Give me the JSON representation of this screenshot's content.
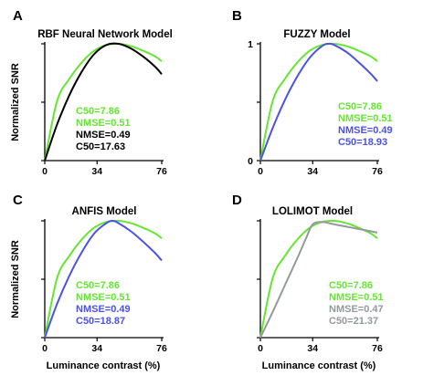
{
  "chart_data": [
    {
      "type": "line",
      "panel_letter": "A",
      "title": "RBF Neural Network Model",
      "xlabel": "",
      "ylabel": "Normalized SNR",
      "xlim": [
        0,
        76
      ],
      "ylim": [
        0,
        1
      ],
      "x_ticks": [
        "0",
        "34",
        "76"
      ],
      "y_ticks": [],
      "grid": false,
      "series": [
        {
          "color": "#66e533",
          "x": [
            0,
            8,
            16,
            24,
            32,
            40,
            48,
            56,
            64,
            72,
            76
          ],
          "y": [
            0,
            0.51,
            0.7,
            0.84,
            0.94,
            0.99,
            1.0,
            0.98,
            0.94,
            0.89,
            0.85
          ]
        },
        {
          "color": "#000000",
          "x": [
            0,
            8,
            16,
            24,
            32,
            40,
            48,
            56,
            64,
            72,
            76
          ],
          "y": [
            0,
            0.31,
            0.56,
            0.76,
            0.91,
            0.99,
            1.0,
            0.96,
            0.89,
            0.8,
            0.74
          ]
        }
      ],
      "annotations": [
        {
          "text": "C50=7.86",
          "color": "#66e533"
        },
        {
          "text": "NMSE=0.51",
          "color": "#66e533"
        },
        {
          "text": "NMSE=0.49",
          "color": "#000000"
        },
        {
          "text": "C50=17.63",
          "color": "#000000"
        }
      ]
    },
    {
      "type": "line",
      "panel_letter": "B",
      "title": "FUZZY Model",
      "xlabel": "",
      "ylabel": "",
      "xlim": [
        0,
        76
      ],
      "ylim": [
        0,
        1
      ],
      "x_ticks": [
        "0",
        "34",
        "76"
      ],
      "y_ticks": [
        "0",
        "1"
      ],
      "grid": false,
      "series": [
        {
          "color": "#66e533",
          "x": [
            0,
            8,
            16,
            24,
            32,
            40,
            48,
            56,
            64,
            72,
            76
          ],
          "y": [
            0,
            0.51,
            0.7,
            0.84,
            0.94,
            0.99,
            1.0,
            0.98,
            0.94,
            0.89,
            0.85
          ]
        },
        {
          "color": "#4b52e6",
          "x": [
            0,
            8,
            16,
            24,
            32,
            40,
            44,
            48,
            56,
            64,
            72,
            76
          ],
          "y": [
            0,
            0.28,
            0.52,
            0.72,
            0.88,
            0.98,
            1.0,
            0.99,
            0.93,
            0.84,
            0.74,
            0.68
          ]
        }
      ],
      "annotations": [
        {
          "text": "C50=7.86",
          "color": "#66e533"
        },
        {
          "text": "NMSE=0.51",
          "color": "#66e533"
        },
        {
          "text": "NMSE=0.49",
          "color": "#4b52e6"
        },
        {
          "text": "C50=18.93",
          "color": "#4b52e6"
        }
      ]
    },
    {
      "type": "line",
      "panel_letter": "C",
      "title": "ANFIS Model",
      "xlabel": "Luminance contrast (%)",
      "ylabel": "Normalized SNR",
      "xlim": [
        0,
        76
      ],
      "ylim": [
        0,
        1
      ],
      "x_ticks": [
        "0",
        "34",
        "76"
      ],
      "y_ticks": [],
      "grid": false,
      "series": [
        {
          "color": "#66e533",
          "x": [
            0,
            8,
            16,
            24,
            32,
            40,
            48,
            56,
            64,
            72,
            76
          ],
          "y": [
            0,
            0.51,
            0.7,
            0.84,
            0.94,
            0.99,
            1.0,
            0.98,
            0.94,
            0.89,
            0.85
          ]
        },
        {
          "color": "#4b52e6",
          "x": [
            0,
            8,
            16,
            24,
            32,
            40,
            44,
            48,
            56,
            64,
            72,
            76
          ],
          "y": [
            0,
            0.29,
            0.53,
            0.73,
            0.89,
            0.98,
            1.0,
            0.98,
            0.91,
            0.82,
            0.72,
            0.66
          ]
        }
      ],
      "annotations": [
        {
          "text": "C50=7.86",
          "color": "#66e533"
        },
        {
          "text": "NMSE=0.51",
          "color": "#66e533"
        },
        {
          "text": "NMSE=0.49",
          "color": "#4b52e6"
        },
        {
          "text": "C50=18.87",
          "color": "#4b52e6"
        }
      ]
    },
    {
      "type": "line",
      "panel_letter": "D",
      "title": "LOLIMOT Model",
      "xlabel": "Luminance contrast (%)",
      "ylabel": "",
      "xlim": [
        0,
        76
      ],
      "ylim": [
        0,
        1
      ],
      "x_ticks": [
        "0",
        "34",
        "76"
      ],
      "y_ticks": [],
      "grid": false,
      "series": [
        {
          "color": "#66e533",
          "x": [
            0,
            8,
            16,
            24,
            32,
            40,
            48,
            56,
            64,
            72,
            76
          ],
          "y": [
            0,
            0.51,
            0.7,
            0.84,
            0.94,
            0.99,
            1.0,
            0.98,
            0.94,
            0.89,
            0.85
          ]
        },
        {
          "color": "#929a9c",
          "x": [
            0,
            8,
            16,
            24,
            30,
            34,
            40,
            48,
            56,
            64,
            72,
            76
          ],
          "y": [
            0,
            0.22,
            0.45,
            0.68,
            0.86,
            0.97,
            0.99,
            0.97,
            0.95,
            0.93,
            0.91,
            0.9
          ]
        }
      ],
      "annotations": [
        {
          "text": "C50=7.86",
          "color": "#66e533"
        },
        {
          "text": "NMSE=0.51",
          "color": "#66e533"
        },
        {
          "text": "NMSE=0.47",
          "color": "#929a9c"
        },
        {
          "text": "C50=21.37",
          "color": "#929a9c"
        }
      ]
    }
  ]
}
